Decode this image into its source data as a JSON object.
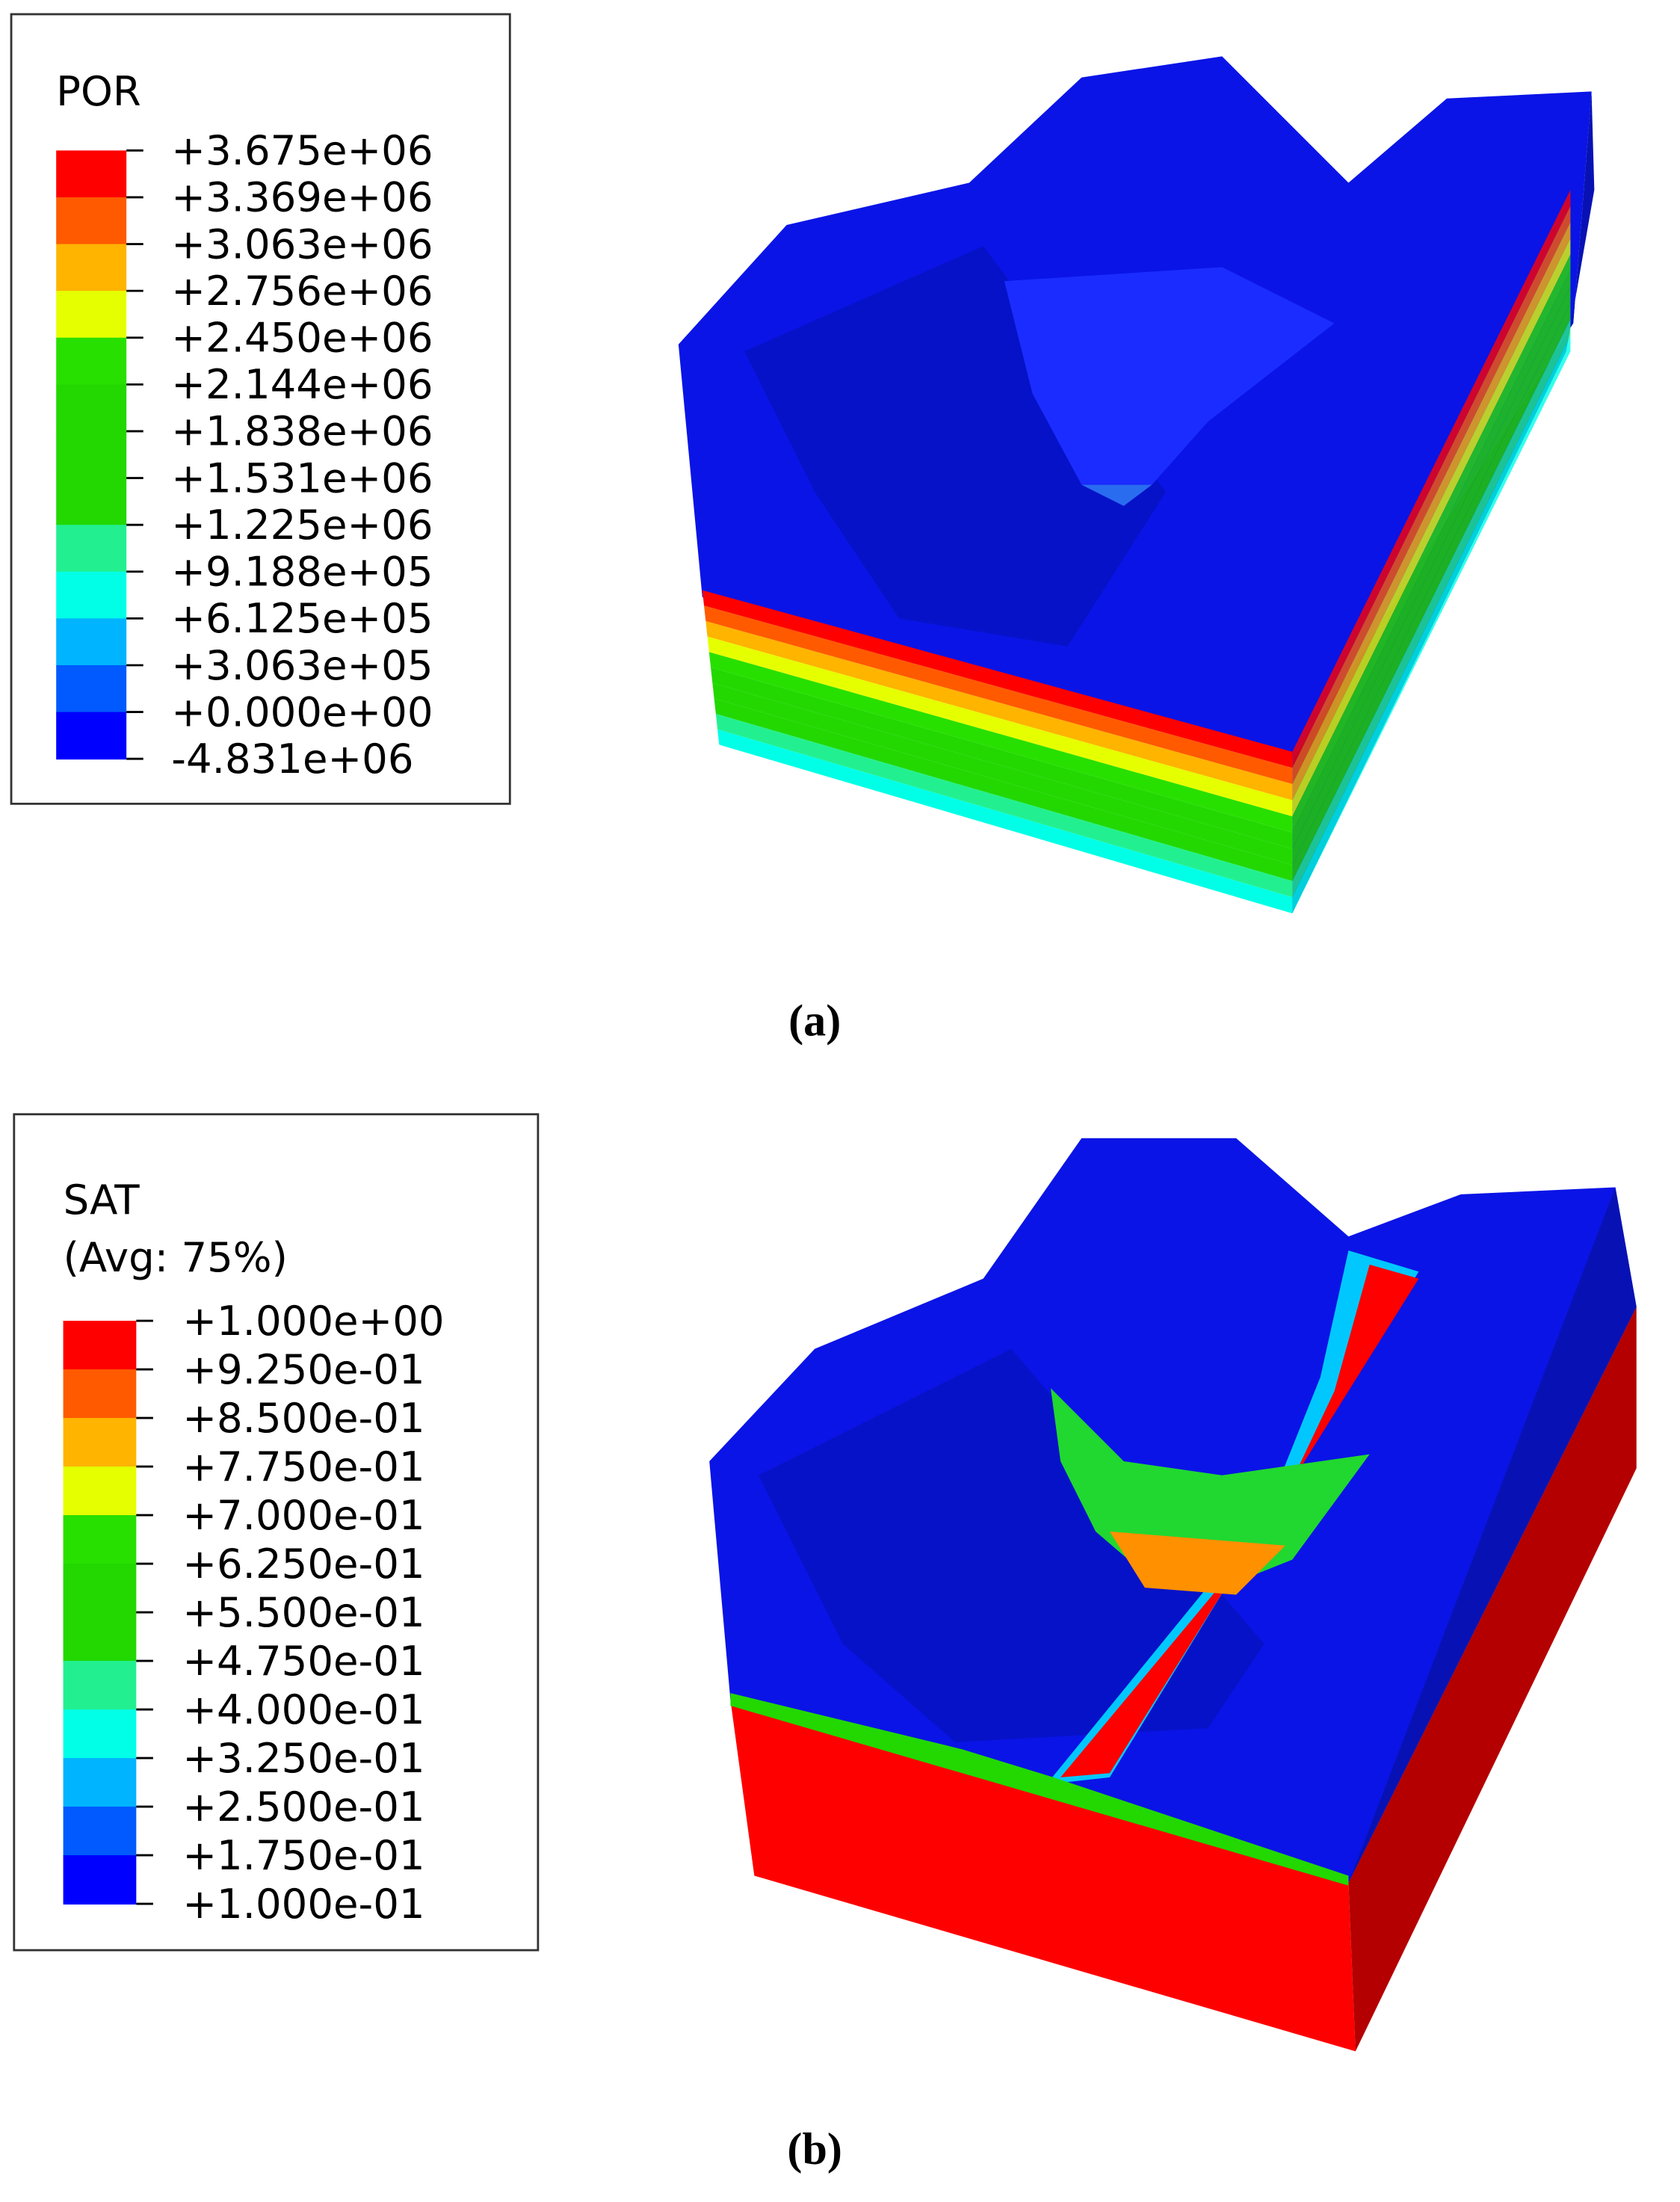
{
  "panels": [
    {
      "legend_title": [
        "POR"
      ],
      "legend_labels": [
        "+3.675e+06",
        "+3.369e+06",
        "+3.063e+06",
        "+2.756e+06",
        "+2.450e+06",
        "+2.144e+06",
        "+1.838e+06",
        "+1.531e+06",
        "+1.225e+06",
        "+9.188e+05",
        "+6.125e+05",
        "+3.063e+05",
        "+0.000e+00",
        "-4.831e+06"
      ],
      "legend_colors": [
        "#ff0000",
        "#ff5a00",
        "#ffb400",
        "#e6ff00",
        "#28e000",
        "#22d800",
        "#22d800",
        "#22d800",
        "#22f090",
        "#00ffe6",
        "#00b4ff",
        "#005aff",
        "#0000ff"
      ],
      "caption": "(a)"
    },
    {
      "legend_title": [
        "SAT",
        "(Avg: 75%)"
      ],
      "legend_labels": [
        "+1.000e+00",
        "+9.250e-01",
        "+8.500e-01",
        "+7.750e-01",
        "+7.000e-01",
        "+6.250e-01",
        "+5.500e-01",
        "+4.750e-01",
        "+4.000e-01",
        "+3.250e-01",
        "+2.500e-01",
        "+1.750e-01",
        "+1.000e-01"
      ],
      "legend_colors": [
        "#ff0000",
        "#ff5a00",
        "#ffb400",
        "#e6ff00",
        "#28e000",
        "#22d800",
        "#22d800",
        "#22f090",
        "#00ffe6",
        "#00b4ff",
        "#005aff",
        "#0000ff"
      ],
      "caption": "(b)"
    }
  ]
}
